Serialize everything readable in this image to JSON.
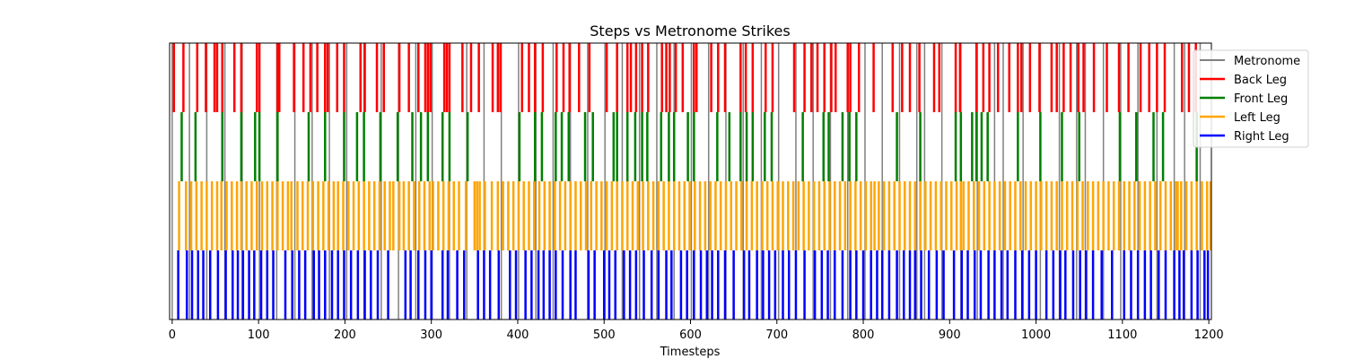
{
  "chart_data": {
    "type": "event-raster",
    "title": "Steps vs Metronome Strikes",
    "xlabel": "Timesteps",
    "ylabel": "",
    "xlim": [
      -3,
      1203
    ],
    "xticks": [
      0,
      100,
      200,
      300,
      400,
      500,
      600,
      700,
      800,
      900,
      1000,
      1100,
      1200
    ],
    "ylim": [
      0,
      4
    ],
    "grid": false,
    "legend_position": "upper-right",
    "series": [
      {
        "name": "Metronome",
        "color": "#808080",
        "lane": [
          0,
          4
        ],
        "events": [
          0,
          20,
          40,
          61,
          81,
          101,
          121,
          142,
          162,
          182,
          202,
          222,
          242,
          262,
          282,
          301,
          321,
          341,
          361,
          381,
          401,
          421,
          441,
          461,
          481,
          501,
          521,
          541,
          561,
          581,
          601,
          621,
          641,
          661,
          682,
          702,
          722,
          742,
          762,
          782,
          802,
          822,
          842,
          862,
          871,
          891,
          913,
          932,
          952,
          962,
          985,
          1005,
          1027,
          1047,
          1057,
          1078,
          1098,
          1118,
          1140,
          1160,
          1172,
          1190
        ]
      },
      {
        "name": "Back Leg",
        "color": "#ff0000",
        "lane": [
          3,
          4
        ],
        "events": [
          2,
          13,
          29,
          39,
          49,
          52,
          58,
          72,
          80,
          98,
          101,
          122,
          124,
          141,
          152,
          160,
          168,
          177,
          180,
          191,
          199,
          218,
          223,
          237,
          245,
          263,
          274,
          285,
          293,
          296,
          299,
          315,
          318,
          321,
          336,
          346,
          355,
          371,
          377,
          380,
          405,
          413,
          420,
          429,
          445,
          453,
          460,
          471,
          483,
          503,
          515,
          527,
          531,
          537,
          544,
          551,
          567,
          572,
          576,
          583,
          591,
          604,
          607,
          624,
          632,
          640,
          658,
          664,
          672,
          687,
          695,
          720,
          732,
          740,
          747,
          755,
          763,
          768,
          782,
          785,
          795,
          812,
          834,
          845,
          854,
          865,
          882,
          888,
          907,
          912,
          931,
          939,
          946,
          956,
          969,
          979,
          983,
          993,
          1004,
          1018,
          1024,
          1032,
          1040,
          1049,
          1055,
          1067,
          1082,
          1096,
          1107,
          1121,
          1131,
          1140,
          1149,
          1169,
          1177,
          1185
        ]
      },
      {
        "name": "Front Leg",
        "color": "#008000",
        "lane": [
          2,
          3
        ],
        "events": [
          11,
          27,
          58,
          80,
          96,
          101,
          122,
          158,
          177,
          199,
          214,
          222,
          241,
          261,
          278,
          288,
          296,
          313,
          321,
          342,
          402,
          420,
          428,
          444,
          451,
          459,
          478,
          487,
          511,
          515,
          527,
          536,
          544,
          550,
          566,
          575,
          581,
          597,
          604,
          631,
          645,
          658,
          665,
          672,
          686,
          694,
          730,
          754,
          760,
          776,
          784,
          792,
          839,
          866,
          907,
          913,
          926,
          931,
          937,
          944,
          979,
          1005,
          1030,
          1050,
          1097,
          1116,
          1136,
          1147,
          1186
        ]
      },
      {
        "name": "Left Leg",
        "color": "#ffa500",
        "lane": [
          1,
          2
        ],
        "events": [
          8,
          16,
          22,
          28,
          34,
          40,
          46,
          52,
          57,
          63,
          69,
          75,
          80,
          86,
          92,
          98,
          104,
          110,
          116,
          122,
          128,
          134,
          138,
          145,
          151,
          157,
          163,
          169,
          175,
          181,
          187,
          192,
          198,
          204,
          210,
          216,
          222,
          228,
          234,
          240,
          246,
          252,
          256,
          263,
          268,
          274,
          280,
          286,
          292,
          298,
          302,
          308,
          314,
          320,
          326,
          332,
          340,
          350,
          353,
          356,
          362,
          370,
          377,
          383,
          389,
          395,
          401,
          407,
          413,
          419,
          425,
          431,
          437,
          443,
          449,
          455,
          461,
          467,
          473,
          479,
          485,
          491,
          497,
          503,
          509,
          515,
          521,
          527,
          533,
          539,
          545,
          551,
          557,
          563,
          569,
          575,
          581,
          587,
          593,
          599,
          605,
          611,
          617,
          623,
          629,
          635,
          641,
          647,
          653,
          659,
          665,
          671,
          677,
          683,
          689,
          695,
          701,
          707,
          713,
          719,
          725,
          731,
          737,
          743,
          749,
          755,
          761,
          767,
          773,
          779,
          785,
          791,
          797,
          803,
          809,
          813,
          818,
          824,
          830,
          836,
          842,
          848,
          854,
          860,
          866,
          872,
          878,
          884,
          890,
          896,
          902,
          908,
          913,
          916,
          922,
          928,
          934,
          940,
          946,
          952,
          958,
          964,
          970,
          976,
          982,
          988,
          994,
          1000,
          1006,
          1012,
          1018,
          1024,
          1030,
          1036,
          1042,
          1048,
          1054,
          1060,
          1066,
          1072,
          1078,
          1084,
          1090,
          1096,
          1102,
          1108,
          1114,
          1120,
          1126,
          1132,
          1138,
          1144,
          1150,
          1156,
          1162,
          1164,
          1168,
          1174,
          1180,
          1186,
          1192,
          1198,
          1202
        ]
      },
      {
        "name": "Right Leg",
        "color": "#0000ff",
        "lane": [
          0,
          1
        ],
        "events": [
          7,
          17,
          23,
          30,
          36,
          44,
          53,
          62,
          70,
          76,
          82,
          89,
          95,
          103,
          110,
          117,
          131,
          139,
          147,
          154,
          164,
          170,
          177,
          185,
          192,
          199,
          207,
          215,
          223,
          230,
          238,
          250,
          270,
          276,
          285,
          293,
          300,
          313,
          319,
          330,
          338,
          354,
          361,
          368,
          378,
          391,
          398,
          409,
          416,
          424,
          430,
          437,
          444,
          452,
          461,
          467,
          482,
          489,
          500,
          506,
          513,
          523,
          530,
          537,
          546,
          555,
          563,
          572,
          578,
          589,
          596,
          604,
          612,
          619,
          625,
          632,
          640,
          650,
          662,
          668,
          677,
          684,
          691,
          698,
          707,
          714,
          722,
          732,
          744,
          752,
          759,
          767,
          776,
          785,
          792,
          800,
          809,
          816,
          822,
          830,
          839,
          847,
          854,
          860,
          867,
          876,
          885,
          893,
          905,
          914,
          921,
          929,
          936,
          945,
          952,
          960,
          967,
          976,
          984,
          992,
          1000,
          1012,
          1020,
          1028,
          1034,
          1043,
          1051,
          1058,
          1066,
          1076,
          1088,
          1102,
          1110,
          1118,
          1126,
          1133,
          1142,
          1150,
          1160,
          1166,
          1171,
          1180,
          1187,
          1195,
          1199
        ]
      }
    ]
  }
}
